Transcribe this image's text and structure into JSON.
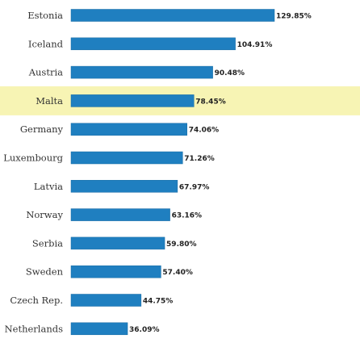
{
  "chart_data": {
    "type": "bar",
    "orientation": "horizontal",
    "categories": [
      "Estonia",
      "Iceland",
      "Austria",
      "Malta",
      "Germany",
      "Luxembourg",
      "Latvia",
      "Norway",
      "Serbia",
      "Sweden",
      "Czech Rep.",
      "Netherlands"
    ],
    "values": [
      129.85,
      104.91,
      90.48,
      78.45,
      74.06,
      71.26,
      67.97,
      63.16,
      59.8,
      57.4,
      44.75,
      36.09
    ],
    "value_labels": [
      "129.85%",
      "104.91%",
      "90.48%",
      "78.45%",
      "74.06%",
      "71.26%",
      "67.97%",
      "63.16%",
      "59.80%",
      "57.40%",
      "44.75%",
      "36.09%"
    ],
    "highlighted_category": "Malta",
    "title": "",
    "xlabel": "",
    "ylabel": "",
    "xlim": [
      0,
      129.85
    ],
    "grid": false,
    "legend": "none",
    "colors": {
      "bar": "#1f7fc0",
      "bar_edge": "#176aa3",
      "highlight_band": "#f7f4b4",
      "highlight_band_edge": "#e9e48a"
    }
  }
}
